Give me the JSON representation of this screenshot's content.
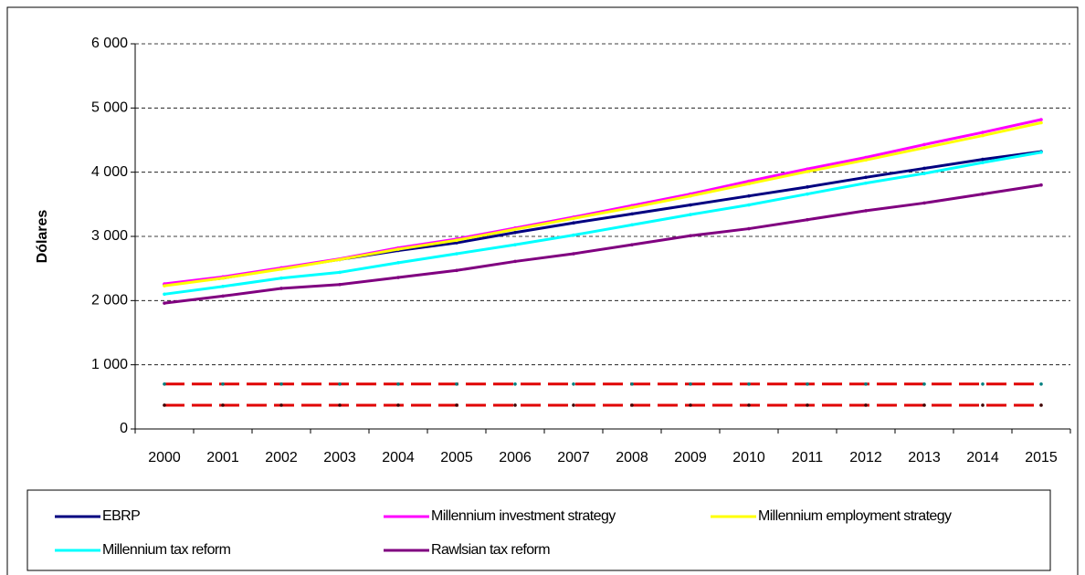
{
  "chart_data": {
    "type": "line",
    "y_label": "Dólares",
    "categories": [
      "2000",
      "2001",
      "2002",
      "2003",
      "2004",
      "2005",
      "2006",
      "2007",
      "2008",
      "2009",
      "2010",
      "2011",
      "2012",
      "2013",
      "2014",
      "2015"
    ],
    "ylim": [
      0,
      6000
    ],
    "yticks": [
      0,
      {
        "value": 1000,
        "label": "1 000"
      },
      {
        "value": 2000,
        "label": "2 000"
      },
      {
        "value": 3000,
        "label": "3 000"
      },
      {
        "value": 4000,
        "label": "4 000"
      },
      {
        "value": 5000,
        "label": "5 000"
      },
      {
        "value": 6000,
        "label": "6 000"
      }
    ],
    "grid": true,
    "series": [
      {
        "name": "EBRP",
        "color": "#000080",
        "values": [
          2250,
          2350,
          2500,
          2640,
          2780,
          2900,
          3060,
          3210,
          3350,
          3490,
          3630,
          3770,
          3920,
          4060,
          4200,
          4320
        ]
      },
      {
        "name": "Millennium investment strategy",
        "color": "#ff00ff",
        "values": [
          2260,
          2370,
          2510,
          2650,
          2820,
          2960,
          3130,
          3300,
          3480,
          3660,
          3860,
          4050,
          4230,
          4430,
          4620,
          4820
        ]
      },
      {
        "name": "Millennium employment strategy",
        "color": "#ffff00",
        "values": [
          2230,
          2350,
          2490,
          2640,
          2800,
          2940,
          3110,
          3280,
          3450,
          3630,
          3820,
          4010,
          4190,
          4380,
          4570,
          4770
        ]
      },
      {
        "name": "Millennium tax reform",
        "color": "#00ffff",
        "values": [
          2100,
          2220,
          2350,
          2440,
          2590,
          2730,
          2870,
          3020,
          3180,
          3340,
          3490,
          3660,
          3830,
          3980,
          4150,
          4310
        ]
      },
      {
        "name": "Rawlsian tax reform",
        "color": "#800080",
        "values": [
          1960,
          2070,
          2190,
          2250,
          2360,
          2470,
          2610,
          2730,
          2870,
          3010,
          3120,
          3260,
          3400,
          3520,
          3660,
          3800
        ]
      },
      {
        "color": "#e00000",
        "dashed": true,
        "marker_color": "#008080",
        "values": [
          700,
          700,
          700,
          700,
          700,
          700,
          700,
          700,
          700,
          700,
          700,
          700,
          700,
          700,
          700,
          700
        ]
      },
      {
        "color": "#e00000",
        "dashed": true,
        "marker_color": "#400000",
        "values": [
          370,
          370,
          370,
          370,
          370,
          370,
          370,
          370,
          370,
          370,
          370,
          370,
          370,
          370,
          370,
          370
        ]
      }
    ]
  }
}
